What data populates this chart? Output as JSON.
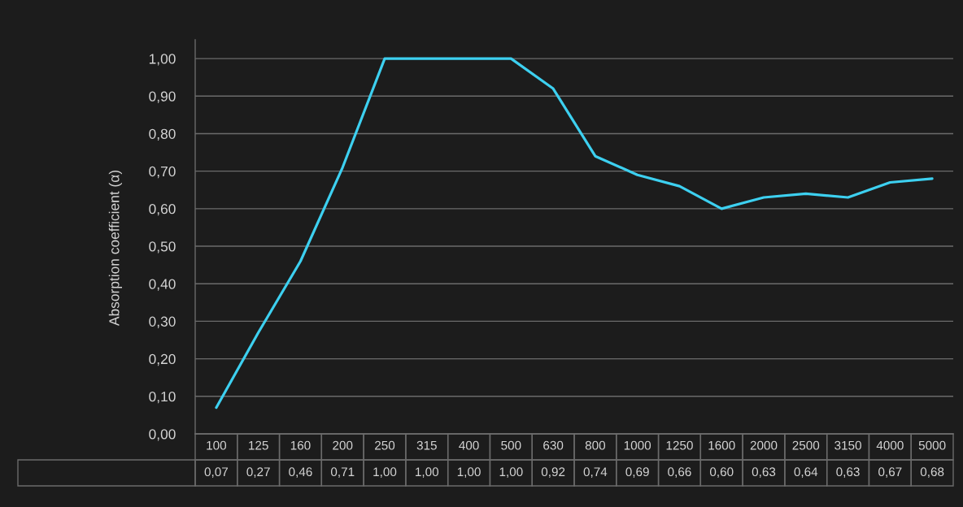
{
  "chart_data": {
    "type": "line",
    "ylabel": "Absorption coefficient (α)",
    "categories": [
      "100",
      "125",
      "160",
      "200",
      "250",
      "315",
      "400",
      "500",
      "630",
      "800",
      "1000",
      "1250",
      "1600",
      "2000",
      "2500",
      "3150",
      "4000",
      "5000"
    ],
    "values": [
      0.07,
      0.27,
      0.46,
      0.71,
      1.0,
      1.0,
      1.0,
      1.0,
      0.92,
      0.74,
      0.69,
      0.66,
      0.6,
      0.63,
      0.64,
      0.63,
      0.67,
      0.68
    ],
    "value_labels": [
      "0,07",
      "0,27",
      "0,46",
      "0,71",
      "1,00",
      "1,00",
      "1,00",
      "1,00",
      "0,92",
      "0,74",
      "0,69",
      "0,66",
      "0,60",
      "0,63",
      "0,64",
      "0,63",
      "0,67",
      "0,68"
    ],
    "color": "#3dd0f0",
    "ylim": [
      0,
      1.05
    ],
    "yticks": [
      {
        "value": 0,
        "label": "0,00"
      },
      {
        "value": 0.1,
        "label": "0,10"
      },
      {
        "value": 0.2,
        "label": "0,20"
      },
      {
        "value": 0.3,
        "label": "0,30"
      },
      {
        "value": 0.4,
        "label": "0,40"
      },
      {
        "value": 0.5,
        "label": "0,50"
      },
      {
        "value": 0.6,
        "label": "0,60"
      },
      {
        "value": 0.7,
        "label": "0,70"
      },
      {
        "value": 0.8,
        "label": "0,80"
      },
      {
        "value": 0.9,
        "label": "0,90"
      },
      {
        "value": 1.0,
        "label": "1,00"
      }
    ],
    "grid": "y",
    "marker": "none",
    "line_style": "solid"
  }
}
